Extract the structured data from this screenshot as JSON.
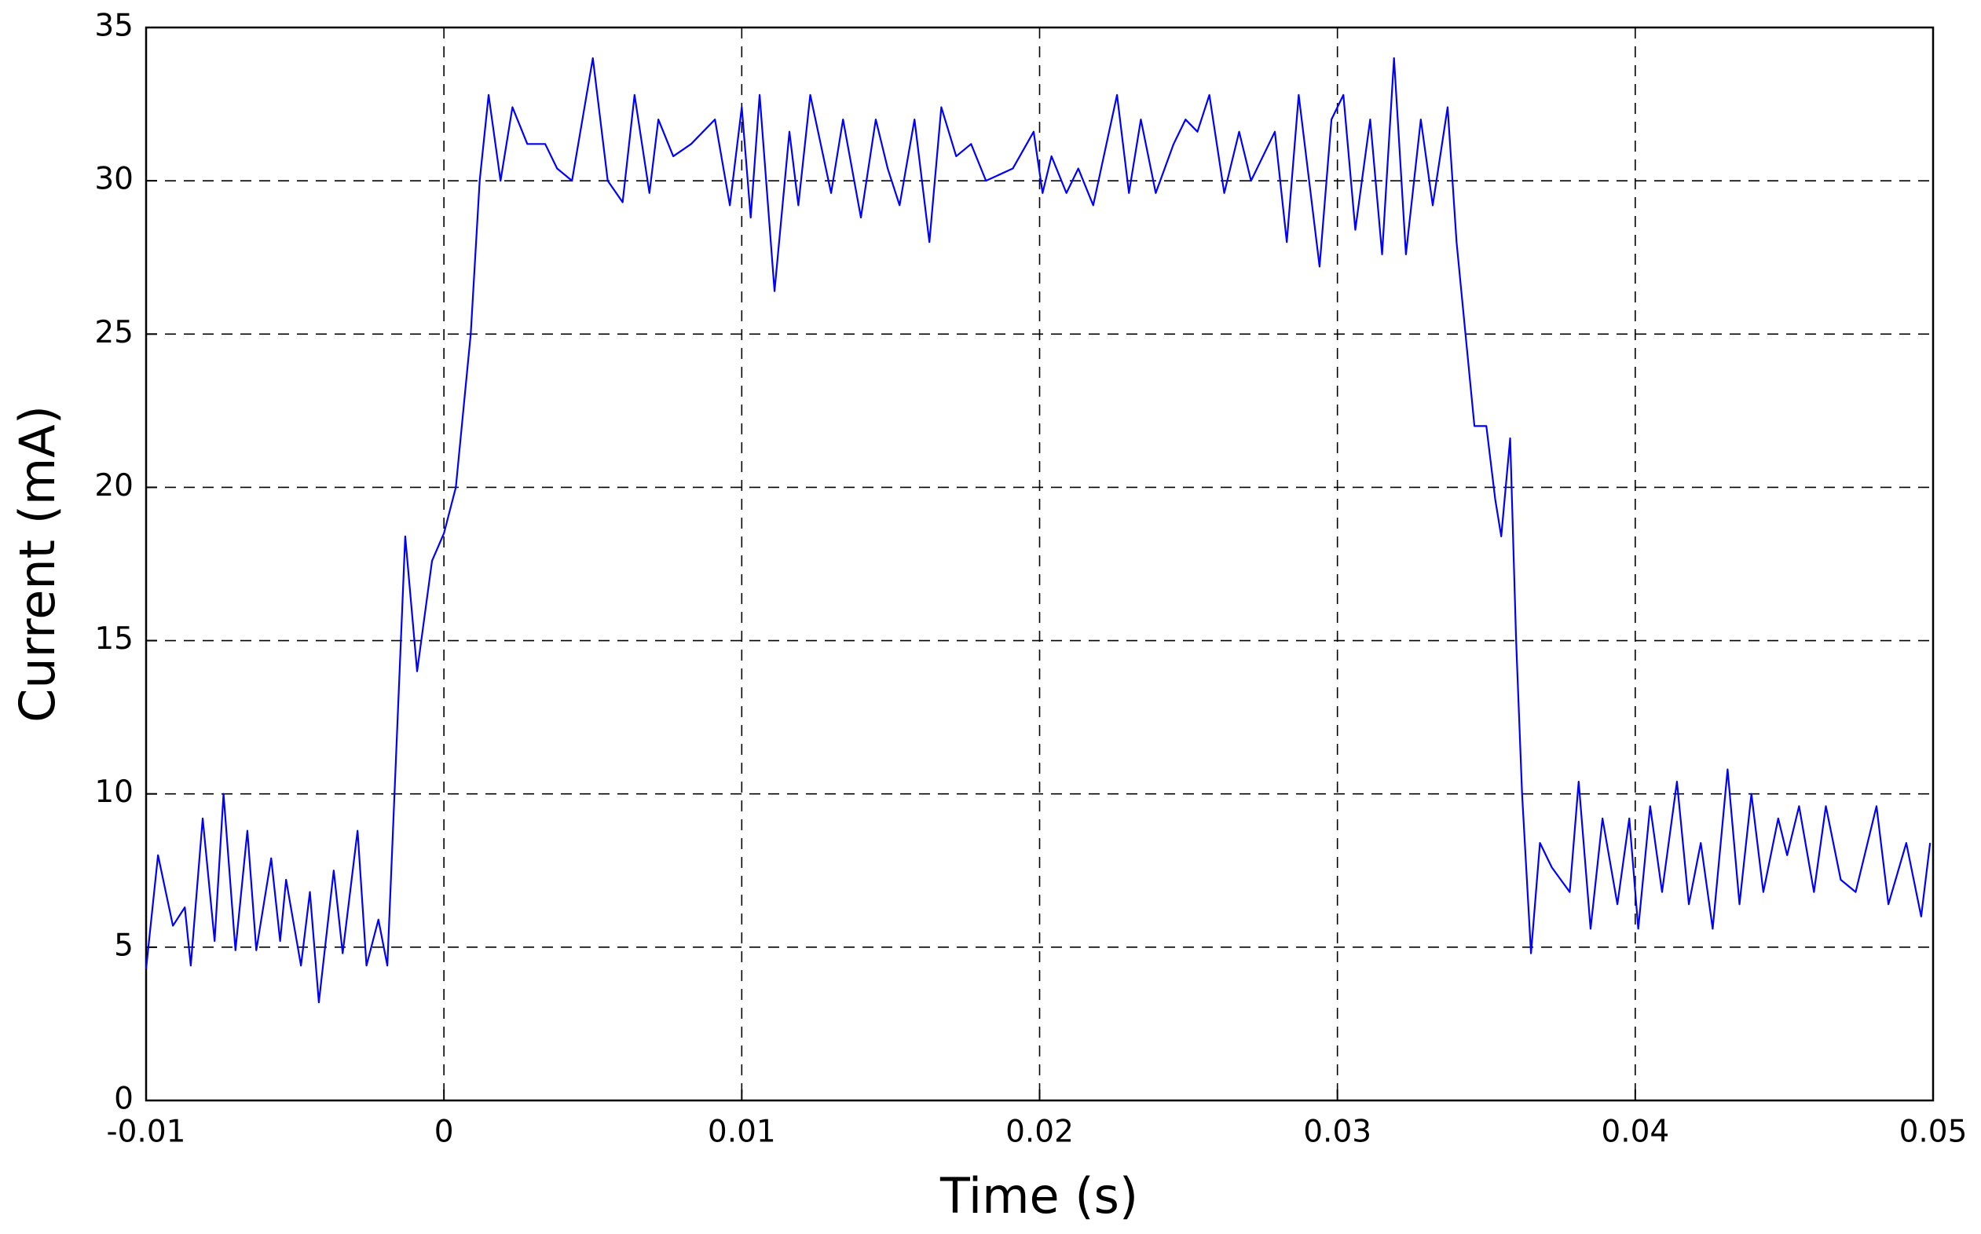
{
  "chart_data": {
    "type": "line",
    "xlabel": "Time (s)",
    "ylabel": "Current (mA)",
    "xlim": [
      -0.01,
      0.05
    ],
    "xticks": [
      -0.01,
      0,
      0.01,
      0.02,
      0.03,
      0.04,
      0.05
    ],
    "ylim": [
      0,
      35
    ],
    "yticks": [
      0,
      5,
      10,
      15,
      20,
      25,
      30,
      35
    ],
    "grid": true,
    "series": [
      {
        "color": "#0000ff",
        "x": [
          -0.01,
          -0.0096,
          -0.0091,
          -0.0087,
          -0.0085,
          -0.0081,
          -0.0077,
          -0.0074,
          -0.007,
          -0.0066,
          -0.0063,
          -0.0058,
          -0.0055,
          -0.0053,
          -0.0048,
          -0.0045,
          -0.0042,
          -0.0037,
          -0.0034,
          -0.0029,
          -0.0026,
          -0.0022,
          -0.0019,
          -0.0013,
          -0.0009,
          -0.0004,
          0,
          0.0004,
          0.0009,
          0.0012,
          0.0015,
          0.0019,
          0.0023,
          0.0028,
          0.0034,
          0.0038,
          0.0043,
          0.005,
          0.0055,
          0.006,
          0.0064,
          0.0069,
          0.0072,
          0.0077,
          0.0083,
          0.0087,
          0.0091,
          0.0096,
          0.01,
          0.0103,
          0.0106,
          0.0111,
          0.0116,
          0.0119,
          0.0123,
          0.013,
          0.0134,
          0.014,
          0.0145,
          0.0149,
          0.0153,
          0.0158,
          0.0163,
          0.0167,
          0.0172,
          0.0177,
          0.0182,
          0.0191,
          0.0198,
          0.0201,
          0.0204,
          0.0209,
          0.0213,
          0.0218,
          0.0226,
          0.023,
          0.0234,
          0.0239,
          0.0245,
          0.0249,
          0.0253,
          0.0257,
          0.0262,
          0.0267,
          0.0271,
          0.0279,
          0.0283,
          0.0287,
          0.0294,
          0.0298,
          0.0302,
          0.0306,
          0.0311,
          0.0315,
          0.0319,
          0.0323,
          0.0328,
          0.0332,
          0.0337,
          0.034,
          0.0343,
          0.0346,
          0.035,
          0.0353,
          0.0355,
          0.0358,
          0.036,
          0.0362,
          0.0365,
          0.0368,
          0.0372,
          0.0378,
          0.0381,
          0.0385,
          0.0389,
          0.0394,
          0.0398,
          0.0401,
          0.0405,
          0.0409,
          0.0414,
          0.0418,
          0.0422,
          0.0426,
          0.0431,
          0.0435,
          0.0439,
          0.0443,
          0.0448,
          0.0451,
          0.0455,
          0.046,
          0.0464,
          0.0469,
          0.0474,
          0.0481,
          0.0485,
          0.0491,
          0.0496,
          0.0499
        ],
        "values": [
          4.3,
          8,
          5.7,
          6.3,
          4.4,
          9.2,
          5.2,
          10,
          4.9,
          8.8,
          4.9,
          7.9,
          5.2,
          7.2,
          4.4,
          6.8,
          3.2,
          7.5,
          4.8,
          8.8,
          4.4,
          5.9,
          4.4,
          18.4,
          14,
          17.6,
          18.5,
          20,
          25,
          30,
          32.8,
          30,
          32.4,
          31.2,
          31.2,
          30.4,
          30,
          34,
          30,
          29.3,
          32.8,
          29.6,
          32,
          30.8,
          31.2,
          31.6,
          32,
          29.2,
          32.4,
          28.8,
          32.8,
          26.4,
          31.6,
          29.2,
          32.8,
          29.6,
          32,
          28.8,
          32,
          30.4,
          29.2,
          32,
          28,
          32.4,
          30.8,
          31.2,
          30,
          30.4,
          31.6,
          29.6,
          30.8,
          29.6,
          30.4,
          29.2,
          32.8,
          29.6,
          32,
          29.6,
          31.2,
          32,
          31.6,
          32.8,
          29.6,
          31.6,
          30,
          31.6,
          28,
          32.8,
          27.2,
          32,
          32.8,
          28.4,
          32,
          27.6,
          34,
          27.6,
          32,
          29.2,
          32.4,
          28,
          25,
          22,
          22,
          19.6,
          18.4,
          21.6,
          15,
          10,
          4.8,
          8.4,
          7.6,
          6.8,
          10.4,
          5.6,
          9.2,
          6.4,
          9.2,
          5.6,
          9.6,
          6.8,
          10.4,
          6.4,
          8.4,
          5.6,
          10.8,
          6.4,
          10,
          6.8,
          9.2,
          8,
          9.6,
          6.8,
          9.6,
          7.2,
          6.8,
          9.6,
          6.4,
          8.4,
          6,
          8.4
        ]
      }
    ]
  }
}
